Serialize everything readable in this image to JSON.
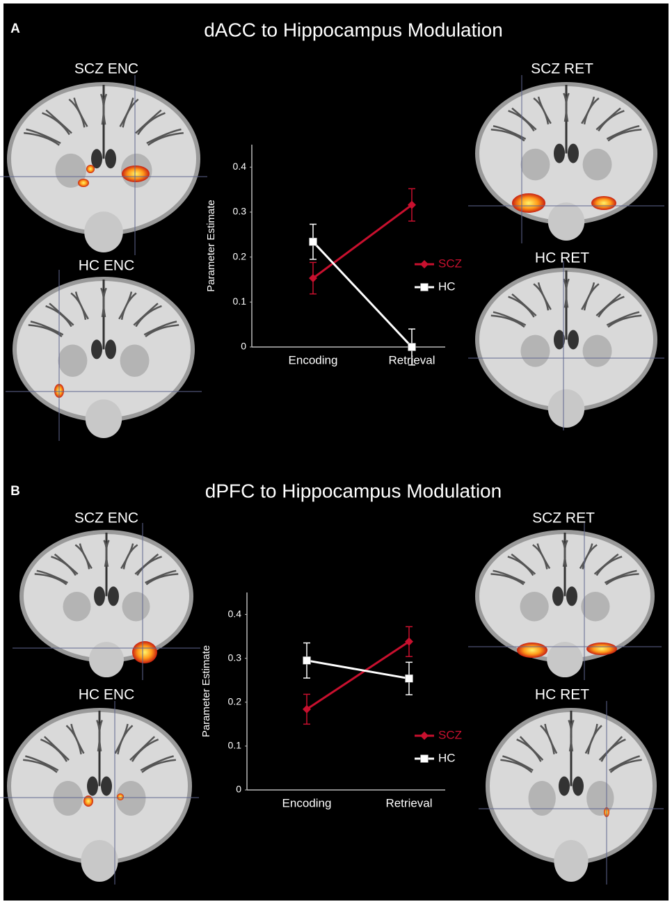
{
  "chart_data": [
    {
      "type": "line",
      "panel": "A",
      "title": "dACC to Hippocampus Modulation",
      "image_labels": [
        "SCZ ENC",
        "HC ENC",
        "SCZ RET",
        "HC RET"
      ],
      "ylabel": "Parameter Estimate",
      "categories": [
        "Encoding",
        "Retrieval"
      ],
      "series": [
        {
          "name": "SCZ",
          "color": "#c8102e",
          "marker": "diamond",
          "values": [
            0.153,
            0.316
          ],
          "errors": [
            0.035,
            0.036
          ]
        },
        {
          "name": "HC",
          "color": "#ffffff",
          "marker": "square",
          "values": [
            0.234,
            0.0
          ],
          "errors": [
            0.039,
            0.04
          ]
        }
      ],
      "ylim": [
        0,
        0.45
      ],
      "yticks": [
        0,
        0.1,
        0.2,
        0.3,
        0.4
      ]
    },
    {
      "type": "line",
      "panel": "B",
      "title": "dPFC to Hippocampus Modulation",
      "image_labels": [
        "SCZ ENC",
        "HC ENC",
        "SCZ RET",
        "HC RET"
      ],
      "ylabel": "Parameter Estimate",
      "categories": [
        "Encoding",
        "Retrieval"
      ],
      "series": [
        {
          "name": "SCZ",
          "color": "#c8102e",
          "marker": "diamond",
          "values": [
            0.184,
            0.338
          ],
          "errors": [
            0.034,
            0.034
          ]
        },
        {
          "name": "HC",
          "color": "#ffffff",
          "marker": "square",
          "values": [
            0.295,
            0.254
          ],
          "errors": [
            0.04,
            0.037
          ]
        }
      ],
      "ylim": [
        0,
        0.45
      ],
      "yticks": [
        0,
        0.1,
        0.2,
        0.3,
        0.4
      ]
    }
  ]
}
